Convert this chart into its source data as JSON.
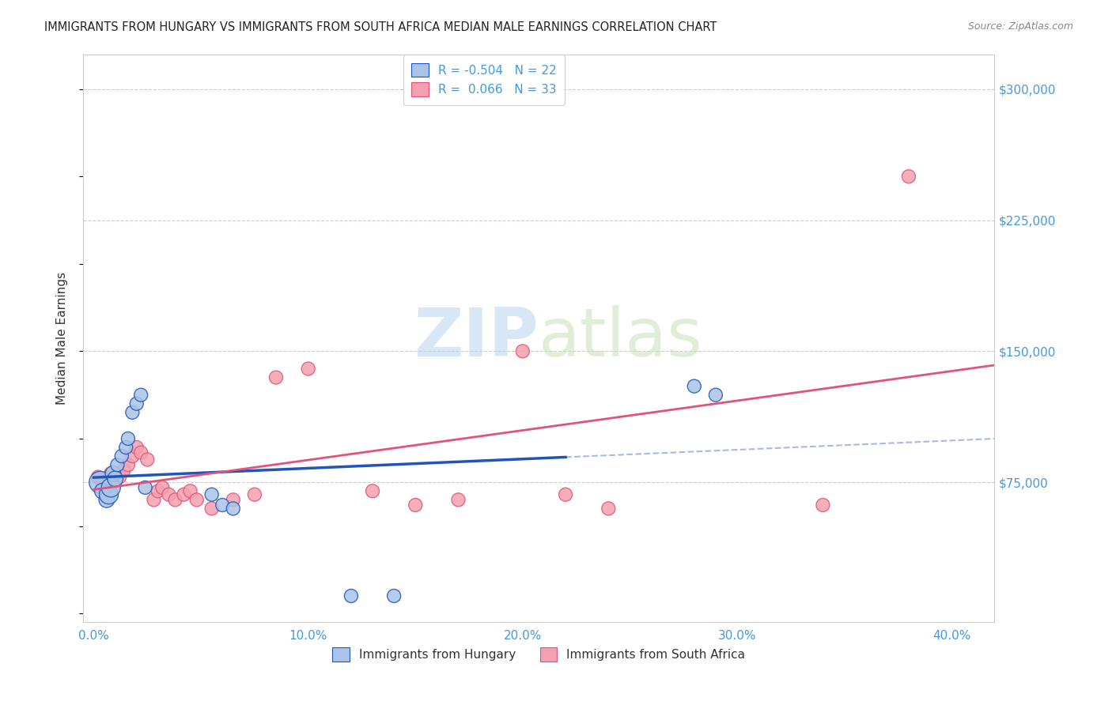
{
  "title": "IMMIGRANTS FROM HUNGARY VS IMMIGRANTS FROM SOUTH AFRICA MEDIAN MALE EARNINGS CORRELATION CHART",
  "source": "Source: ZipAtlas.com",
  "xlabel_ticks": [
    "0.0%",
    "10.0%",
    "20.0%",
    "30.0%",
    "40.0%"
  ],
  "xlabel_tick_vals": [
    0.0,
    0.1,
    0.2,
    0.3,
    0.4
  ],
  "ylabel": "Median Male Earnings",
  "ytick_labels": [
    "$75,000",
    "$150,000",
    "$225,000",
    "$300,000"
  ],
  "ytick_vals": [
    75000,
    150000,
    225000,
    300000
  ],
  "xlim": [
    -0.005,
    0.42
  ],
  "ylim": [
    -5000,
    320000
  ],
  "R_hungary": -0.504,
  "N_hungary": 22,
  "R_south_africa": 0.066,
  "N_south_africa": 33,
  "legend_label_hungary": "Immigrants from Hungary",
  "legend_label_south_africa": "Immigrants from South Africa",
  "color_hungary": "#aac4e8",
  "color_south_africa": "#f5a0b0",
  "line_color_hungary": "#2255bb",
  "line_color_south_africa": "#e05577",
  "hungary_scatter": {
    "x": [
      0.003,
      0.004,
      0.006,
      0.007,
      0.008,
      0.009,
      0.01,
      0.011,
      0.013,
      0.015,
      0.016,
      0.018,
      0.02,
      0.022,
      0.024,
      0.055,
      0.06,
      0.065,
      0.12,
      0.14,
      0.28,
      0.29
    ],
    "y": [
      75000,
      70000,
      65000,
      68000,
      72000,
      80000,
      77000,
      85000,
      90000,
      95000,
      100000,
      115000,
      120000,
      125000,
      72000,
      68000,
      62000,
      60000,
      10000,
      10000,
      130000,
      125000
    ],
    "size": [
      400,
      200,
      200,
      300,
      300,
      200,
      200,
      150,
      150,
      150,
      150,
      150,
      150,
      150,
      150,
      150,
      150,
      150,
      150,
      150,
      150,
      150
    ]
  },
  "south_africa_scatter": {
    "x": [
      0.002,
      0.004,
      0.006,
      0.008,
      0.01,
      0.012,
      0.014,
      0.016,
      0.018,
      0.02,
      0.022,
      0.025,
      0.028,
      0.03,
      0.032,
      0.035,
      0.038,
      0.042,
      0.045,
      0.048,
      0.055,
      0.065,
      0.075,
      0.085,
      0.1,
      0.13,
      0.15,
      0.17,
      0.2,
      0.22,
      0.24,
      0.34,
      0.38
    ],
    "y": [
      78000,
      75000,
      72000,
      80000,
      76000,
      78000,
      82000,
      85000,
      90000,
      95000,
      92000,
      88000,
      65000,
      70000,
      72000,
      68000,
      65000,
      68000,
      70000,
      65000,
      60000,
      65000,
      68000,
      135000,
      140000,
      70000,
      62000,
      65000,
      150000,
      68000,
      60000,
      62000,
      250000
    ],
    "size": [
      150,
      150,
      150,
      150,
      150,
      150,
      150,
      150,
      150,
      150,
      150,
      150,
      150,
      150,
      150,
      150,
      150,
      150,
      150,
      150,
      150,
      150,
      150,
      150,
      150,
      150,
      150,
      150,
      150,
      150,
      150,
      150,
      150
    ]
  }
}
